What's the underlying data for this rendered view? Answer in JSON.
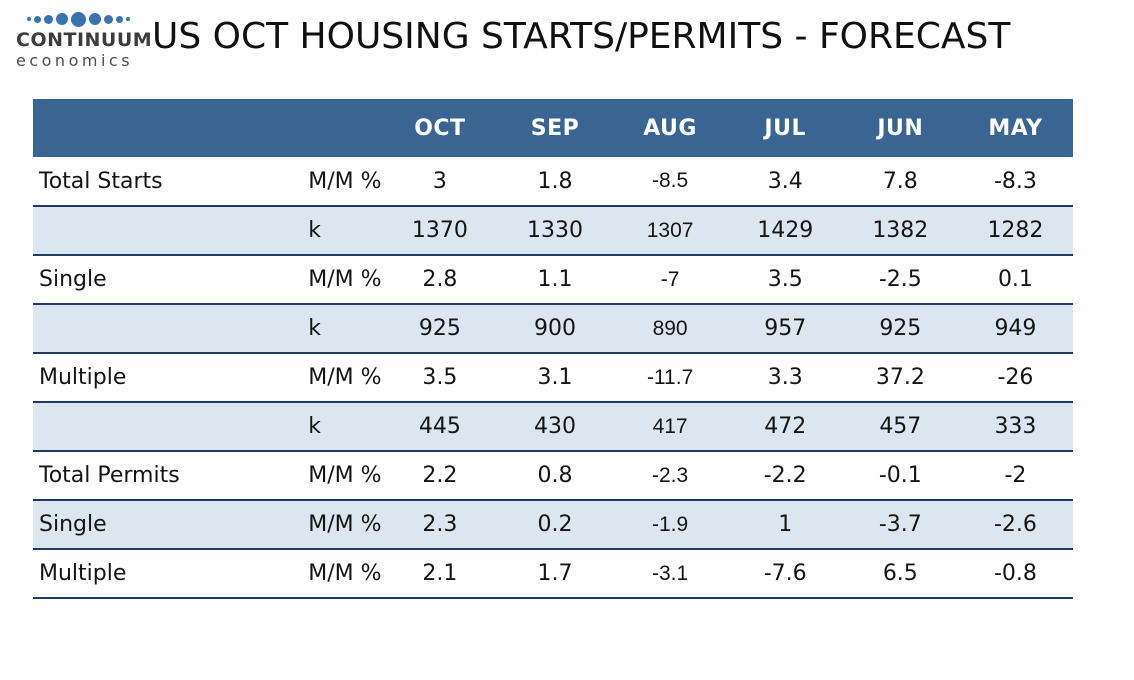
{
  "logo": {
    "line1": "CONTINUUM",
    "line2": "economics"
  },
  "title": "US OCT HOUSING STARTS/PERMITS - FORECAST",
  "colors": {
    "header_bg": "#3a6491",
    "shaded_row": "#dce6f0",
    "row_border": "#1f3864",
    "logo_dots": "#3a74ae"
  },
  "chart_data": {
    "type": "table",
    "title": "US OCT HOUSING STARTS/PERMITS - FORECAST",
    "categories": [
      "OCT",
      "SEP",
      "AUG",
      "JUL",
      "JUN",
      "MAY"
    ],
    "rows": [
      {
        "label": "Total Starts",
        "unit": "M/M %",
        "values": [
          3,
          1.8,
          -8.5,
          3.4,
          7.8,
          -8.3
        ]
      },
      {
        "label": "",
        "unit": "k",
        "values": [
          1370,
          1330,
          1307,
          1429,
          1382,
          1282
        ]
      },
      {
        "label": "Single",
        "unit": "M/M %",
        "values": [
          2.8,
          1.1,
          -7,
          3.5,
          -2.5,
          0.1
        ]
      },
      {
        "label": "",
        "unit": "k",
        "values": [
          925,
          900,
          890,
          957,
          925,
          949
        ]
      },
      {
        "label": "Multiple",
        "unit": "M/M %",
        "values": [
          3.5,
          3.1,
          -11.7,
          3.3,
          37.2,
          -26
        ]
      },
      {
        "label": "",
        "unit": "k",
        "values": [
          445,
          430,
          417,
          472,
          457,
          333
        ]
      },
      {
        "label": "Total Permits",
        "unit": "M/M %",
        "values": [
          2.2,
          0.8,
          -2.3,
          -2.2,
          -0.1,
          -2
        ]
      },
      {
        "label": "Single",
        "unit": "M/M %",
        "values": [
          2.3,
          0.2,
          -1.9,
          1,
          -3.7,
          -2.6
        ]
      },
      {
        "label": "Multiple",
        "unit": "M/M %",
        "values": [
          2.1,
          1.7,
          -3.1,
          -7.6,
          6.5,
          -0.8
        ]
      }
    ],
    "layout_hints": {
      "shaded_rows": "every second data row (light blue)",
      "value_alignment": "center",
      "header_style": "solid blue bar, white bold month labels"
    }
  }
}
